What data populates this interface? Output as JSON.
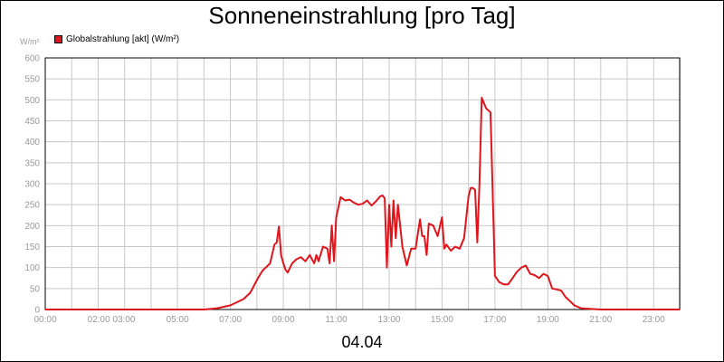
{
  "chart_data": {
    "type": "line",
    "title": "Sonneneinstrahlung [pro Tag]",
    "unit_label": "W/m²",
    "xlabel": "",
    "ylabel": "",
    "date_label": "04.04",
    "ylim": [
      0,
      600
    ],
    "y_ticks": [
      "0",
      "50",
      "100",
      "150",
      "200",
      "250",
      "300",
      "350",
      "400",
      "450",
      "500",
      "550",
      "600"
    ],
    "x_ticks": [
      "00:00",
      "02:00 03:00",
      "05:00",
      "07:00",
      "09:00",
      "11:00",
      "13:00",
      "15:00",
      "17:00",
      "19:00",
      "21:00",
      "23:00"
    ],
    "grid": true,
    "legend": "top-left",
    "series": [
      {
        "name": "Globalstrahlung [akt] (W/m²)",
        "color": "#e0151b",
        "x": [
          "00:00",
          "01:00",
          "02:00",
          "03:00",
          "04:00",
          "05:00",
          "06:00",
          "06:30",
          "07:00",
          "07:30",
          "07:45",
          "08:00",
          "08:10",
          "08:15",
          "08:20",
          "08:30",
          "08:40",
          "08:45",
          "08:50",
          "08:55",
          "09:00",
          "09:05",
          "09:10",
          "09:20",
          "09:30",
          "09:40",
          "09:50",
          "10:00",
          "10:10",
          "10:15",
          "10:20",
          "10:30",
          "10:40",
          "10:45",
          "10:50",
          "10:55",
          "11:00",
          "11:10",
          "11:20",
          "11:30",
          "11:40",
          "11:50",
          "12:00",
          "12:10",
          "12:20",
          "12:30",
          "12:40",
          "12:45",
          "12:50",
          "12:55",
          "13:00",
          "13:05",
          "13:10",
          "13:15",
          "13:20",
          "13:30",
          "13:40",
          "13:50",
          "14:00",
          "14:10",
          "14:15",
          "14:20",
          "14:25",
          "14:30",
          "14:40",
          "14:50",
          "15:00",
          "15:05",
          "15:10",
          "15:20",
          "15:30",
          "15:40",
          "15:50",
          "16:00",
          "16:05",
          "16:10",
          "16:15",
          "16:20",
          "16:25",
          "16:30",
          "16:40",
          "16:50",
          "17:00",
          "17:10",
          "17:20",
          "17:30",
          "17:40",
          "17:50",
          "18:00",
          "18:10",
          "18:20",
          "18:30",
          "18:40",
          "18:50",
          "19:00",
          "19:10",
          "19:20",
          "19:30",
          "19:40",
          "19:50",
          "20:00",
          "20:15",
          "21:00",
          "22:00",
          "23:00",
          "23:59"
        ],
        "values": [
          0,
          0,
          0,
          0,
          0,
          0,
          0,
          3,
          10,
          25,
          40,
          70,
          88,
          95,
          100,
          110,
          155,
          160,
          198,
          130,
          110,
          95,
          88,
          110,
          120,
          125,
          115,
          130,
          110,
          130,
          115,
          150,
          145,
          110,
          200,
          115,
          220,
          268,
          260,
          262,
          255,
          250,
          252,
          260,
          248,
          258,
          270,
          272,
          265,
          100,
          250,
          150,
          260,
          170,
          250,
          150,
          105,
          145,
          145,
          215,
          175,
          175,
          130,
          205,
          200,
          175,
          220,
          145,
          155,
          140,
          150,
          145,
          170,
          270,
          290,
          290,
          285,
          160,
          300,
          505,
          480,
          470,
          80,
          65,
          60,
          60,
          75,
          90,
          100,
          105,
          85,
          82,
          75,
          85,
          80,
          50,
          48,
          45,
          30,
          20,
          10,
          3,
          0,
          0,
          0,
          0
        ]
      }
    ]
  }
}
